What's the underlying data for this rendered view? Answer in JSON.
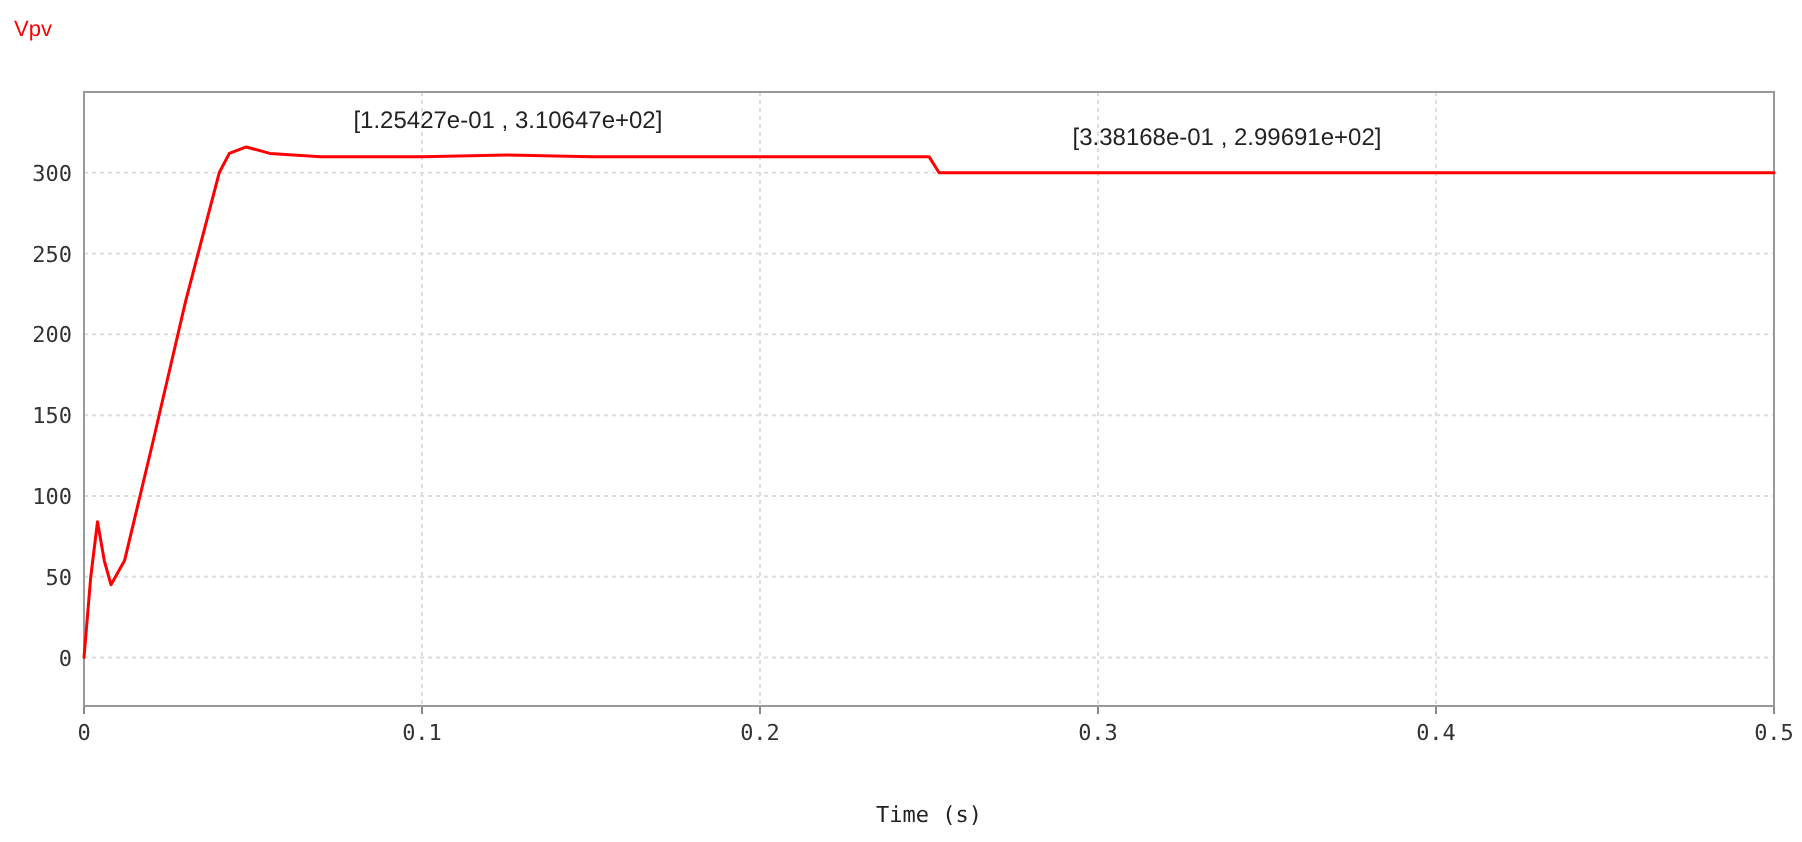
{
  "chart_data": {
    "type": "line",
    "xlabel": "Time (s)",
    "x": [
      0,
      0.002,
      0.004,
      0.006,
      0.008,
      0.012,
      0.02,
      0.03,
      0.04,
      0.043,
      0.048,
      0.055,
      0.07,
      0.1,
      0.125,
      0.15,
      0.2,
      0.25,
      0.253,
      0.3,
      0.338,
      0.4,
      0.45,
      0.5
    ],
    "series": [
      {
        "name": "Vpv",
        "color": "#ff0000",
        "values": [
          0,
          50,
          84,
          60,
          45,
          60,
          130,
          220,
          300,
          312,
          316,
          312,
          310,
          310,
          311,
          310,
          310,
          310,
          300,
          300,
          300,
          300,
          300,
          300
        ]
      }
    ],
    "xlim": [
      0,
      0.5
    ],
    "xticks": [
      0,
      0.1,
      0.2,
      0.3,
      0.4,
      0.5
    ],
    "ylim": [
      -30,
      350
    ],
    "yticks": [
      0,
      50,
      100,
      150,
      200,
      250,
      300
    ],
    "grid": true,
    "legend": "top left",
    "marker": "none",
    "line_style": "solid",
    "annotations": [
      {
        "text": "[1.25427e-01 , 3.10647e+02]",
        "x": 0.125427,
        "y": 310.647
      },
      {
        "text": "[3.38168e-01 , 2.99691e+02]",
        "x": 0.338168,
        "y": 299.691
      }
    ]
  }
}
